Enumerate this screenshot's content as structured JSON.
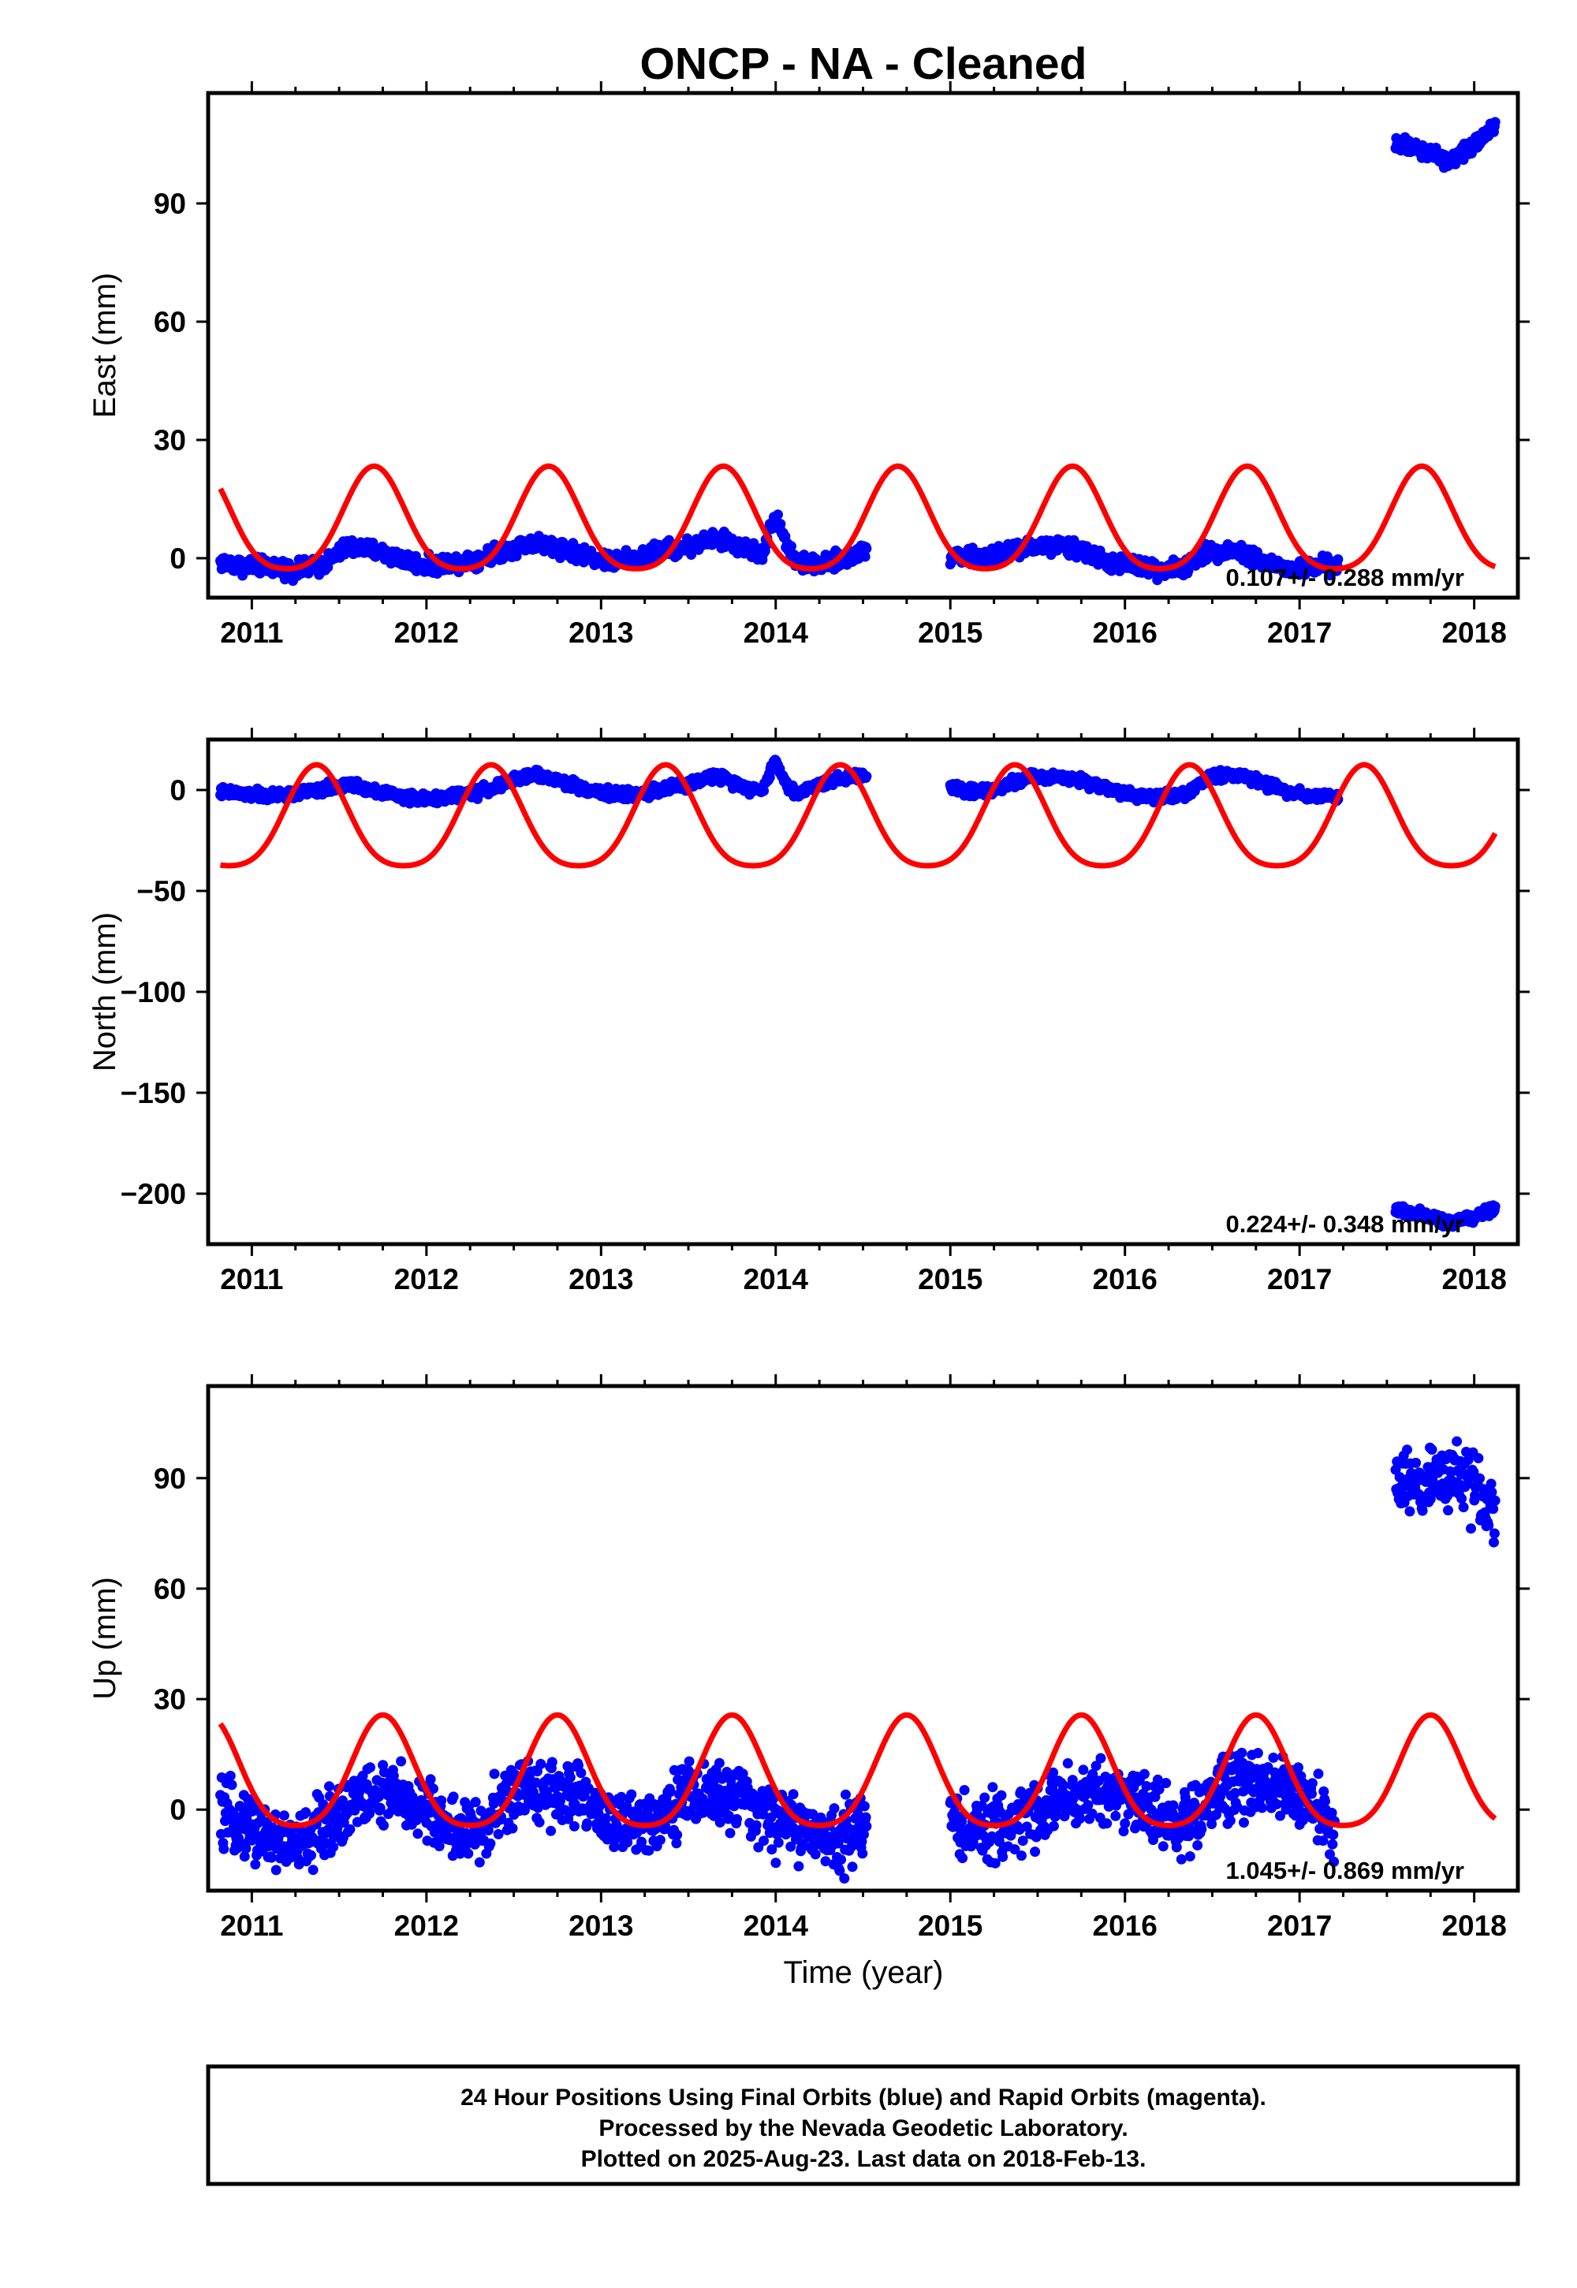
{
  "title": "ONCP  - NA - Cleaned",
  "colors": {
    "final_orbits": "#0000ff",
    "model": "#ff0000",
    "frame": "#000000"
  },
  "chart_data": [
    {
      "type": "scatter",
      "panel": "east",
      "ylabel": "East (mm)",
      "xlabel": "",
      "xlim": [
        2010.75,
        2018.25
      ],
      "ylim": [
        -10,
        118
      ],
      "xticks": [
        2011,
        2012,
        2013,
        2014,
        2015,
        2016,
        2017,
        2018
      ],
      "yticks": [
        0,
        30,
        60,
        90
      ],
      "ytick_labels": [
        "0",
        "30",
        "60",
        "90"
      ],
      "velocity_label": "0.107+/- 0.288 mm/yr",
      "data_segments": [
        {
          "name": "",
          "x": [
            2010.82,
            2010.95,
            2011.1,
            2011.25,
            2011.4,
            2011.55,
            2011.7,
            2011.85,
            2012.0,
            2012.15,
            2012.3,
            2012.45,
            2012.6,
            2012.75,
            2012.9,
            2013.05,
            2013.2,
            2013.35,
            2013.5,
            2013.65,
            2013.8,
            2013.92,
            2014.0,
            2014.05,
            2014.12,
            2014.25,
            2014.4,
            2014.52
          ],
          "y": [
            -1,
            -2,
            -2,
            -3,
            -2,
            3,
            2,
            0,
            -2,
            -1,
            0,
            2,
            4,
            3,
            1,
            -1,
            0,
            2,
            3,
            5,
            3,
            1,
            11,
            5,
            -1,
            -2,
            0,
            2
          ]
        },
        {
          "name": "",
          "x": [
            2015.0,
            2015.15,
            2015.3,
            2015.45,
            2015.6,
            2015.75,
            2015.9,
            2016.05,
            2016.2,
            2016.35,
            2016.5,
            2016.65,
            2016.8,
            2016.95,
            2017.1,
            2017.22
          ],
          "y": [
            1,
            0,
            1,
            3,
            3,
            2,
            -1,
            -2,
            -3,
            -2,
            2,
            2,
            -1,
            -3,
            -2,
            -2
          ]
        },
        {
          "name": "",
          "x": [
            2017.55,
            2017.65,
            2017.75,
            2017.85,
            2017.95,
            2018.05,
            2018.12
          ],
          "y": [
            105,
            104,
            103,
            101,
            103,
            107,
            110
          ]
        }
      ],
      "model_amplitude": 13,
      "model_offset": 8,
      "model_phase_year": 2011.7
    },
    {
      "type": "scatter",
      "panel": "north",
      "ylabel": "North (mm)",
      "xlabel": "",
      "xlim": [
        2010.75,
        2018.25
      ],
      "ylim": [
        -225,
        25
      ],
      "xticks": [
        2011,
        2012,
        2013,
        2014,
        2015,
        2016,
        2017,
        2018
      ],
      "yticks": [
        0,
        -50,
        -100,
        -150,
        -200
      ],
      "ytick_labels": [
        "0",
        "−50",
        "−100",
        "−150",
        "−200"
      ],
      "velocity_label": "0.224+/- 0.348 mm/yr",
      "data_segments": [
        {
          "name": "",
          "x": [
            2010.82,
            2010.95,
            2011.1,
            2011.25,
            2011.4,
            2011.55,
            2011.7,
            2011.85,
            2012.0,
            2012.15,
            2012.3,
            2012.45,
            2012.6,
            2012.75,
            2012.9,
            2013.05,
            2013.2,
            2013.35,
            2013.5,
            2013.65,
            2013.8,
            2013.92,
            2014.0,
            2014.05,
            2014.12,
            2014.25,
            2014.4,
            2014.52
          ],
          "y": [
            -1,
            -2,
            -3,
            -2,
            0,
            3,
            0,
            -3,
            -5,
            -3,
            -1,
            3,
            8,
            5,
            1,
            -2,
            -2,
            0,
            3,
            7,
            3,
            -1,
            15,
            4,
            -2,
            3,
            6,
            8
          ]
        },
        {
          "name": "",
          "x": [
            2015.0,
            2015.15,
            2015.3,
            2015.45,
            2015.6,
            2015.75,
            2015.9,
            2016.05,
            2016.2,
            2016.35,
            2016.5,
            2016.65,
            2016.8,
            2016.95,
            2017.1,
            2017.22
          ],
          "y": [
            2,
            -1,
            2,
            6,
            7,
            5,
            1,
            -3,
            -3,
            -2,
            7,
            8,
            3,
            -1,
            -3,
            -3
          ]
        },
        {
          "name": "",
          "x": [
            2017.55,
            2017.65,
            2017.75,
            2017.85,
            2017.95,
            2018.05,
            2018.12
          ],
          "y": [
            -208,
            -210,
            -212,
            -214,
            -213,
            -210,
            -207
          ]
        }
      ],
      "model_amplitude": 25,
      "model_offset": -17,
      "model_phase_year": 2011.37
    },
    {
      "type": "scatter",
      "panel": "up",
      "ylabel": "Up (mm)",
      "xlabel": "Time (year)",
      "xlim": [
        2010.75,
        2018.25
      ],
      "ylim": [
        -22,
        115
      ],
      "xticks": [
        2011,
        2012,
        2013,
        2014,
        2015,
        2016,
        2017,
        2018
      ],
      "yticks": [
        0,
        30,
        60,
        90
      ],
      "ytick_labels": [
        "0",
        "30",
        "60",
        "90"
      ],
      "velocity_label": "1.045+/- 0.869 mm/yr",
      "data_segments": [
        {
          "name": "",
          "x": [
            2010.82,
            2010.95,
            2011.1,
            2011.25,
            2011.4,
            2011.55,
            2011.7,
            2011.85,
            2012.0,
            2012.15,
            2012.3,
            2012.45,
            2012.6,
            2012.75,
            2012.9,
            2013.05,
            2013.2,
            2013.35,
            2013.5,
            2013.65,
            2013.8,
            2013.95,
            2014.1,
            2014.25,
            2014.4,
            2014.52
          ],
          "y": [
            -2,
            -3,
            -8,
            -10,
            -5,
            1,
            4,
            3,
            0,
            -5,
            -7,
            2,
            6,
            5,
            3,
            -3,
            -5,
            0,
            4,
            4,
            2,
            -2,
            -4,
            -8,
            -6,
            -3
          ]
        },
        {
          "name": "",
          "x": [
            2015.0,
            2015.15,
            2015.3,
            2015.45,
            2015.6,
            2015.75,
            2015.9,
            2016.05,
            2016.2,
            2016.35,
            2016.5,
            2016.65,
            2016.8,
            2016.95,
            2017.1,
            2017.2
          ],
          "y": [
            -3,
            -6,
            -5,
            -1,
            2,
            4,
            5,
            3,
            -2,
            -4,
            3,
            8,
            8,
            6,
            0,
            -6
          ]
        },
        {
          "name": "",
          "x": [
            2017.55,
            2017.65,
            2017.75,
            2017.85,
            2017.95,
            2018.05,
            2018.12
          ],
          "y": [
            88,
            88,
            90,
            91,
            88,
            86,
            82
          ]
        }
      ],
      "model_amplitude": 15,
      "model_offset": 8,
      "model_phase_year": 2011.75
    }
  ],
  "footer": {
    "line1": "24 Hour Positions Using Final Orbits (blue) and Rapid Orbits (magenta).",
    "line2": "Processed by the Nevada Geodetic Laboratory.",
    "line3": "Plotted on 2025-Aug-23. Last data on 2018-Feb-13."
  }
}
